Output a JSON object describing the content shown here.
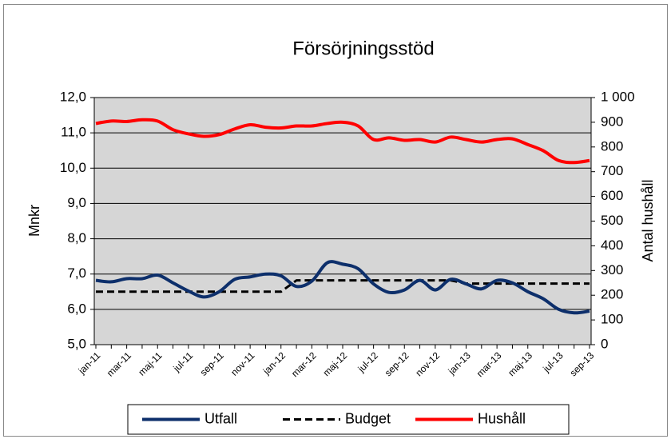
{
  "chart_data": {
    "type": "line",
    "title": "Försörjningsstöd",
    "y_label": "Mnkr",
    "y2_label": "Antal hushåll",
    "categories": [
      "jan-11",
      null,
      "mar-11",
      null,
      "maj-11",
      null,
      "jul-11",
      null,
      "sep-11",
      null,
      "nov-11",
      null,
      "jan-12",
      null,
      "mar-12",
      null,
      "maj-12",
      null,
      "jul-12",
      null,
      "sep-12",
      null,
      "nov-12",
      null,
      "jan-13",
      null,
      "mar-13",
      null,
      "maj-13",
      null,
      "jul-13",
      null,
      "sep-13"
    ],
    "series": [
      {
        "name": "Utfall",
        "color": "#0d2f6b",
        "line_style": "solid",
        "axis": "y",
        "values": [
          6.82,
          6.78,
          6.87,
          6.87,
          6.97,
          6.75,
          6.52,
          6.35,
          6.5,
          6.85,
          6.92,
          7.0,
          6.95,
          6.65,
          6.8,
          7.32,
          7.28,
          7.15,
          6.72,
          6.48,
          6.55,
          6.82,
          6.55,
          6.85,
          6.72,
          6.58,
          6.82,
          6.75,
          6.5,
          6.3,
          6.0,
          5.9,
          5.95
        ]
      },
      {
        "name": "Budget",
        "color": "#000000",
        "line_style": "dashed",
        "axis": "y",
        "values": [
          6.5,
          6.5,
          6.5,
          6.5,
          6.5,
          6.5,
          6.5,
          6.5,
          6.5,
          6.5,
          6.5,
          6.5,
          6.5,
          6.82,
          6.82,
          6.82,
          6.82,
          6.82,
          6.82,
          6.82,
          6.82,
          6.82,
          6.82,
          6.82,
          6.73,
          6.73,
          6.73,
          6.73,
          6.73,
          6.73,
          6.73,
          6.73,
          6.73
        ]
      },
      {
        "name": "Hushåll",
        "color": "#ff0000",
        "line_style": "solid",
        "axis": "y2",
        "values": [
          895,
          905,
          903,
          910,
          905,
          870,
          853,
          843,
          850,
          873,
          890,
          880,
          877,
          885,
          885,
          895,
          900,
          885,
          830,
          837,
          827,
          830,
          820,
          840,
          830,
          820,
          830,
          833,
          810,
          785,
          745,
          737,
          745
        ]
      }
    ],
    "ylim": [
      5,
      12
    ],
    "yticks": [
      {
        "value": 5,
        "label": "5,0"
      },
      {
        "value": 6,
        "label": "6,0"
      },
      {
        "value": 7,
        "label": "7,0"
      },
      {
        "value": 8,
        "label": "8,0"
      },
      {
        "value": 9,
        "label": "9,0"
      },
      {
        "value": 10,
        "label": "10,0"
      },
      {
        "value": 11,
        "label": "11,0"
      },
      {
        "value": 12,
        "label": "12,0"
      }
    ],
    "y2lim": [
      0,
      1000
    ],
    "y2ticks": [
      0,
      100,
      200,
      300,
      400,
      500,
      600,
      700,
      800,
      900,
      {
        "value": 1000,
        "label": "1 000"
      }
    ],
    "grid": true,
    "legend": "bottom"
  }
}
